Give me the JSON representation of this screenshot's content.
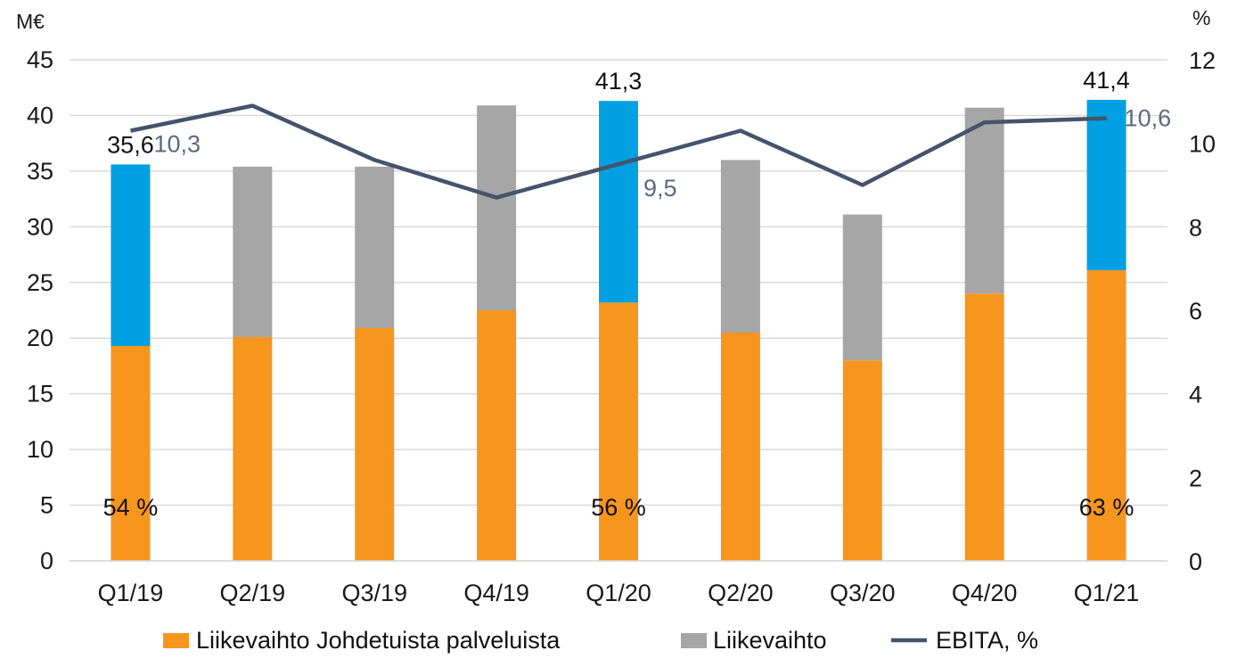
{
  "chart_data": {
    "type": "bar",
    "stacked": true,
    "categories": [
      "Q1/19",
      "Q2/19",
      "Q3/19",
      "Q4/19",
      "Q1/20",
      "Q2/20",
      "Q3/20",
      "Q4/20",
      "Q1/21"
    ],
    "series": [
      {
        "name": "Liikevaihto Johdetuista palveluista",
        "type": "bar",
        "axis": "left",
        "color": "#f7961e",
        "values": [
          19.3,
          20.1,
          20.9,
          22.5,
          23.2,
          20.5,
          18.0,
          24.0,
          26.1
        ]
      },
      {
        "name": "Liikevaihto",
        "type": "bar",
        "axis": "left",
        "color": "#a6a6a6",
        "highlight_color": "#00a0e3",
        "highlight_categories": [
          "Q1/19",
          "Q1/20",
          "Q1/21"
        ],
        "values": [
          16.3,
          15.3,
          14.5,
          18.4,
          18.1,
          15.5,
          13.1,
          16.7,
          15.3
        ]
      },
      {
        "name": "EBITA, %",
        "type": "line",
        "axis": "right",
        "color": "#44546a",
        "values": [
          10.3,
          10.9,
          9.6,
          8.7,
          9.5,
          10.3,
          9.0,
          10.5,
          10.6
        ]
      }
    ],
    "left_axis": {
      "unit": "M€",
      "min": 0,
      "max": 45,
      "ticks": [
        "0",
        "5",
        "10",
        "15",
        "20",
        "25",
        "30",
        "35",
        "40",
        "45"
      ]
    },
    "right_axis": {
      "unit": "%",
      "min": 0,
      "max": 12,
      "ticks": [
        "0",
        "2",
        "4",
        "6",
        "8",
        "10",
        "12"
      ]
    },
    "total_labels": [
      {
        "category": "Q1/19",
        "value": 35.6,
        "text": "35,6"
      },
      {
        "category": "Q1/20",
        "value": 41.3,
        "text": "41,3"
      },
      {
        "category": "Q1/21",
        "value": 41.4,
        "text": "41,4"
      }
    ],
    "share_labels": [
      {
        "category": "Q1/19",
        "text": "54 %"
      },
      {
        "category": "Q1/20",
        "text": "56 %"
      },
      {
        "category": "Q1/21",
        "text": "63 %"
      }
    ],
    "ebita_labels": [
      {
        "category": "Q1/19",
        "value": 10.3,
        "text": "10,3"
      },
      {
        "category": "Q1/20",
        "value": 9.5,
        "text": "9,5"
      },
      {
        "category": "Q1/21",
        "value": 10.6,
        "text": "10,6"
      }
    ],
    "grid": true,
    "legend": {
      "position": "bottom",
      "items": [
        "Liikevaihto Johdetuista palveluista",
        "Liikevaihto",
        "EBITA, %"
      ]
    }
  }
}
